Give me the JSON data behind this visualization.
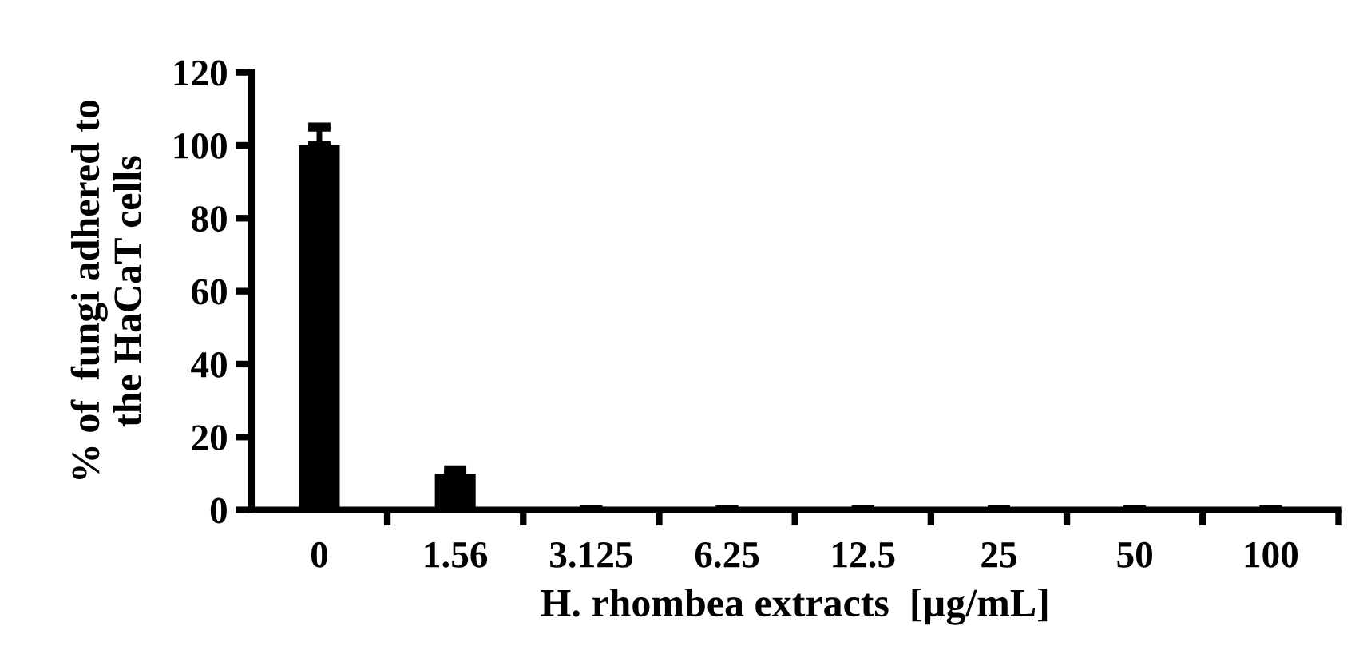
{
  "chart_data": {
    "type": "bar",
    "ylabel": "% of  fungi adhered to\nthe HaCaT cells",
    "xlabel": "H. rhombea extracts  [µg/mL]",
    "categories": [
      "0",
      "1.56",
      "3.125",
      "6.25",
      "12.5",
      "25",
      "50",
      "100"
    ],
    "values": [
      100,
      10,
      0,
      0,
      0,
      0,
      0,
      0
    ],
    "errors": [
      5,
      1,
      null,
      null,
      null,
      null,
      null,
      null
    ],
    "color": "#000000",
    "ylim": [
      0,
      120
    ],
    "yticks": [
      0,
      20,
      40,
      60,
      80,
      100,
      120
    ],
    "grid": false
  }
}
